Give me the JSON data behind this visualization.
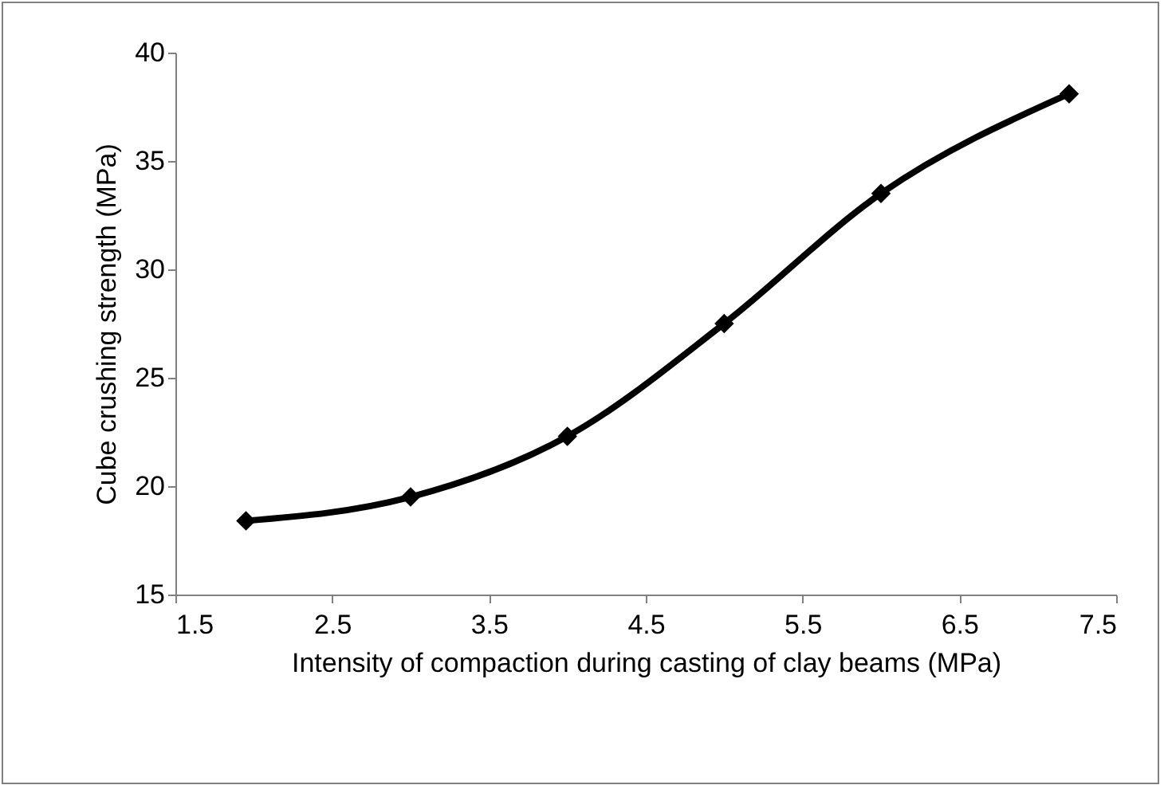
{
  "chart_data": {
    "type": "line",
    "xlabel": "Intensity of compaction during casting of clay beams (MPa)",
    "ylabel": "Cube crushing strength (MPa)",
    "x": [
      1.95,
      3,
      4,
      5,
      6,
      7.2
    ],
    "series": [
      {
        "color": "#000000",
        "values": [
          18.4,
          19.5,
          22.3,
          27.5,
          33.5,
          38.1
        ]
      }
    ],
    "xlim": [
      1.5,
      7.5
    ],
    "xticks": [
      1.5,
      2.5,
      3.5,
      4.5,
      5.5,
      6.5,
      7.5
    ],
    "ylim": [
      15,
      40
    ],
    "yticks": [
      15,
      20,
      25,
      30,
      35,
      40
    ],
    "grid": false,
    "marker": "diamond",
    "line_style": "solid"
  }
}
